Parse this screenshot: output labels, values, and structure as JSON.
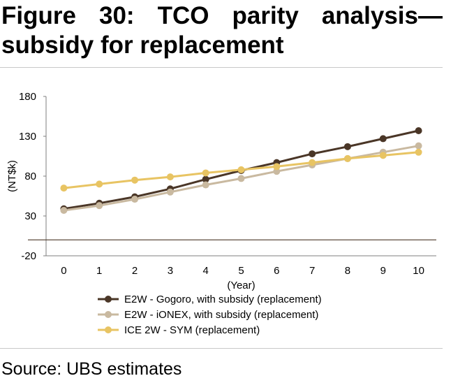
{
  "figure": {
    "title_line1": "Figure 30: TCO parity analysis—",
    "title_line2": "subsidy for replacement"
  },
  "source_text": "Source: UBS estimates",
  "chart_data": {
    "type": "line",
    "title": "Figure 30: TCO parity analysis—subsidy for replacement",
    "xlabel": "(Year)",
    "ylabel": "(NT$k)",
    "x": [
      0,
      1,
      2,
      3,
      4,
      5,
      6,
      7,
      8,
      9,
      10
    ],
    "ylim": [
      -20,
      180
    ],
    "yticks": [
      -20,
      30,
      80,
      130,
      180
    ],
    "grid": false,
    "legend_position": "bottom",
    "series": [
      {
        "name": "E2W - Gogoro, with subsidy (replacement)",
        "color": "#4a3627",
        "values": [
          39,
          46,
          54,
          64,
          76,
          87,
          97,
          108,
          117,
          127,
          137
        ]
      },
      {
        "name": "E2W - iONEX, with subsidy (replacement)",
        "color": "#c9b9a0",
        "values": [
          37,
          43,
          51,
          60,
          69,
          77,
          86,
          94,
          102,
          110,
          118
        ]
      },
      {
        "name": "ICE 2W - SYM (replacement)",
        "color": "#e8c463",
        "values": [
          65,
          70,
          75,
          79,
          84,
          88,
          92,
          97,
          102,
          106,
          110
        ]
      }
    ]
  }
}
